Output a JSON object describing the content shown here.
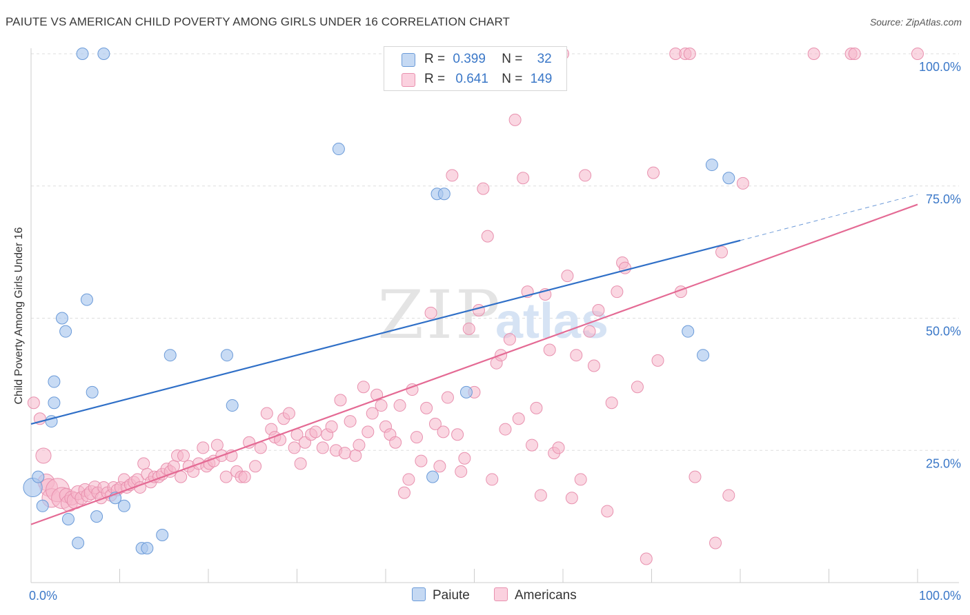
{
  "title": "PAIUTE VS AMERICAN CHILD POVERTY AMONG GIRLS UNDER 16 CORRELATION CHART",
  "source": "Source: ZipAtlas.com",
  "watermark": {
    "zip": "ZIP",
    "atlas": "atlas"
  },
  "legend": {
    "rows": [
      {
        "r_label": "R =",
        "r_value": "0.399",
        "n_label": "N =",
        "n_value": "32"
      },
      {
        "r_label": "R =",
        "r_value": "0.641",
        "n_label": "N =",
        "n_value": "149"
      }
    ]
  },
  "bottom_legend": {
    "paiute": "Paiute",
    "americans": "Americans"
  },
  "colors": {
    "paiute_fill": "#aac8ee",
    "paiute_stroke": "#6a9ad8",
    "paiute_line": "#2f6fc7",
    "americans_fill": "#f6b6ca",
    "americans_stroke": "#e890ae",
    "americans_line": "#e46a94",
    "tick_text": "#3b78c8",
    "grid": "#dddddd"
  },
  "chart_data": {
    "type": "scatter",
    "title": "PAIUTE VS AMERICAN CHILD POVERTY AMONG GIRLS UNDER 16 CORRELATION CHART",
    "xlabel": "",
    "ylabel": "Child Poverty Among Girls Under 16",
    "xlim": [
      0,
      100
    ],
    "ylim": [
      0,
      100
    ],
    "x_tick_labels": [
      "0.0%",
      "100.0%"
    ],
    "y_tick_labels": [
      "25.0%",
      "50.0%",
      "75.0%",
      "100.0%"
    ],
    "y_ticks": [
      25,
      50,
      75,
      100
    ],
    "grid": true,
    "legend_position": "top-center",
    "series": [
      {
        "name": "Paiute",
        "R": 0.399,
        "N": 32,
        "trend": {
          "x0": 0,
          "y0": 30,
          "x1": 80,
          "y1": 64.7,
          "dashed_to_x": 100,
          "dashed_to_y": 73.4
        },
        "points": [
          [
            0.2,
            18,
            16
          ],
          [
            0.8,
            20,
            10
          ],
          [
            1.3,
            14.5,
            10
          ],
          [
            2.3,
            30.5,
            10
          ],
          [
            2.6,
            34,
            10
          ],
          [
            2.6,
            38,
            10
          ],
          [
            3.5,
            50,
            10
          ],
          [
            3.9,
            47.5,
            10
          ],
          [
            4.2,
            12,
            10
          ],
          [
            5.3,
            7.5,
            10
          ],
          [
            5.8,
            100,
            10
          ],
          [
            6.3,
            53.5,
            10
          ],
          [
            6.9,
            36,
            10
          ],
          [
            7.4,
            12.5,
            10
          ],
          [
            8.2,
            100,
            10
          ],
          [
            9.5,
            16,
            10
          ],
          [
            10.5,
            14.5,
            10
          ],
          [
            12.5,
            6.5,
            10
          ],
          [
            13.1,
            6.5,
            10
          ],
          [
            14.8,
            9,
            10
          ],
          [
            15.7,
            43,
            10
          ],
          [
            22.1,
            43,
            10
          ],
          [
            22.7,
            33.5,
            10
          ],
          [
            34.7,
            82,
            10
          ],
          [
            45.3,
            20,
            10
          ],
          [
            45.8,
            73.5,
            10
          ],
          [
            46.6,
            73.5,
            10
          ],
          [
            49.1,
            36,
            10
          ],
          [
            74.1,
            47.5,
            10
          ],
          [
            75.8,
            43,
            10
          ],
          [
            76.8,
            79,
            10
          ],
          [
            78.7,
            76.5,
            10
          ]
        ]
      },
      {
        "name": "Americans",
        "R": 0.641,
        "N": 149,
        "trend": {
          "x0": 0,
          "y0": 11,
          "x1": 100,
          "y1": 71.5
        },
        "points": [
          [
            0.3,
            34,
            10
          ],
          [
            1.0,
            31,
            10
          ],
          [
            1.4,
            24,
            13
          ],
          [
            1.7,
            19,
            14
          ],
          [
            2.0,
            18,
            15
          ],
          [
            2.3,
            16,
            16
          ],
          [
            3.0,
            17.5,
            20
          ],
          [
            3.5,
            16,
            18
          ],
          [
            4.0,
            16.5,
            12
          ],
          [
            4.3,
            15,
            14
          ],
          [
            4.6,
            16,
            12
          ],
          [
            5.0,
            15.5,
            14
          ],
          [
            5.3,
            17,
            12
          ],
          [
            5.7,
            16,
            11
          ],
          [
            6.1,
            17.5,
            11
          ],
          [
            6.4,
            16.5,
            11
          ],
          [
            6.8,
            17,
            12
          ],
          [
            7.2,
            18,
            11
          ],
          [
            7.5,
            17,
            10
          ],
          [
            7.9,
            16,
            10
          ],
          [
            8.2,
            18,
            10
          ],
          [
            8.6,
            17,
            10
          ],
          [
            9.0,
            16.5,
            10
          ],
          [
            9.3,
            18,
            10
          ],
          [
            9.7,
            17.5,
            10
          ],
          [
            10.1,
            18,
            10
          ],
          [
            10.5,
            19.5,
            10
          ],
          [
            10.8,
            18,
            10
          ],
          [
            11.2,
            18.5,
            10
          ],
          [
            11.6,
            19,
            10
          ],
          [
            12.0,
            19.5,
            10
          ],
          [
            12.3,
            18,
            10
          ],
          [
            12.7,
            22.5,
            10
          ],
          [
            13.1,
            20.5,
            10
          ],
          [
            13.5,
            19,
            10
          ],
          [
            13.9,
            20,
            10
          ],
          [
            14.4,
            20,
            10
          ],
          [
            14.8,
            20.5,
            10
          ],
          [
            15.3,
            21.5,
            10
          ],
          [
            15.7,
            21,
            10
          ],
          [
            16.1,
            22,
            10
          ],
          [
            16.5,
            24,
            10
          ],
          [
            16.9,
            20,
            10
          ],
          [
            17.2,
            24,
            10
          ],
          [
            17.8,
            22,
            10
          ],
          [
            18.3,
            21,
            10
          ],
          [
            18.9,
            22.5,
            10
          ],
          [
            19.4,
            25.5,
            10
          ],
          [
            19.8,
            22,
            10
          ],
          [
            20.1,
            22.5,
            10
          ],
          [
            20.6,
            23,
            10
          ],
          [
            21.0,
            26,
            10
          ],
          [
            21.5,
            24,
            10
          ],
          [
            22.0,
            20,
            10
          ],
          [
            22.6,
            24,
            10
          ],
          [
            23.2,
            21,
            10
          ],
          [
            23.7,
            20,
            10
          ],
          [
            24.1,
            20,
            10
          ],
          [
            24.6,
            26.5,
            10
          ],
          [
            25.3,
            22,
            10
          ],
          [
            25.9,
            25.5,
            10
          ],
          [
            26.6,
            32,
            10
          ],
          [
            27.1,
            29,
            10
          ],
          [
            27.5,
            27.5,
            10
          ],
          [
            28.1,
            27,
            10
          ],
          [
            28.5,
            31,
            10
          ],
          [
            29.1,
            32,
            10
          ],
          [
            29.7,
            25.5,
            10
          ],
          [
            30.0,
            28,
            10
          ],
          [
            30.4,
            22.5,
            10
          ],
          [
            30.9,
            26.5,
            10
          ],
          [
            31.6,
            28,
            10
          ],
          [
            32.1,
            28.5,
            10
          ],
          [
            32.9,
            25.5,
            10
          ],
          [
            33.4,
            28,
            10
          ],
          [
            33.9,
            29.5,
            10
          ],
          [
            34.4,
            25,
            10
          ],
          [
            34.9,
            34.5,
            10
          ],
          [
            35.4,
            24.5,
            10
          ],
          [
            36.0,
            30.5,
            10
          ],
          [
            36.6,
            24,
            10
          ],
          [
            37.0,
            26,
            10
          ],
          [
            37.5,
            37,
            10
          ],
          [
            38.0,
            28.5,
            10
          ],
          [
            38.5,
            32,
            10
          ],
          [
            39.0,
            35.5,
            10
          ],
          [
            39.5,
            33.5,
            10
          ],
          [
            40.0,
            29.5,
            10
          ],
          [
            40.5,
            28,
            10
          ],
          [
            41.1,
            26.5,
            10
          ],
          [
            41.6,
            33.5,
            10
          ],
          [
            42.1,
            17,
            10
          ],
          [
            42.6,
            19.5,
            10
          ],
          [
            43.0,
            36.5,
            10
          ],
          [
            43.5,
            27.5,
            10
          ],
          [
            44.0,
            23,
            10
          ],
          [
            44.6,
            33,
            10
          ],
          [
            45.1,
            51,
            10
          ],
          [
            45.6,
            30,
            10
          ],
          [
            46.1,
            22,
            10
          ],
          [
            46.5,
            28.5,
            10
          ],
          [
            47.0,
            35,
            10
          ],
          [
            47.5,
            77,
            10
          ],
          [
            48.1,
            28,
            10
          ],
          [
            48.5,
            21,
            10
          ],
          [
            48.9,
            23.5,
            10
          ],
          [
            49.4,
            48,
            10
          ],
          [
            50.0,
            36,
            10
          ],
          [
            50.5,
            51.5,
            10
          ],
          [
            51.0,
            74.5,
            10
          ],
          [
            51.5,
            65.5,
            10
          ],
          [
            52.0,
            19.5,
            10
          ],
          [
            52.5,
            41.5,
            10
          ],
          [
            53.0,
            43,
            10
          ],
          [
            53.5,
            29,
            10
          ],
          [
            54.0,
            46,
            10
          ],
          [
            54.6,
            87.5,
            10
          ],
          [
            55.0,
            31,
            10
          ],
          [
            55.5,
            76.5,
            10
          ],
          [
            56.0,
            55,
            10
          ],
          [
            56.5,
            26,
            10
          ],
          [
            57.0,
            33,
            10
          ],
          [
            57.5,
            16.5,
            10
          ],
          [
            58.0,
            54.5,
            10
          ],
          [
            58.5,
            44,
            10
          ],
          [
            59.0,
            24.5,
            10
          ],
          [
            59.5,
            25.5,
            10
          ],
          [
            60.0,
            100,
            10
          ],
          [
            60.5,
            58,
            10
          ],
          [
            61.0,
            16,
            10
          ],
          [
            61.5,
            43,
            10
          ],
          [
            62.0,
            19.5,
            10
          ],
          [
            62.5,
            77,
            10
          ],
          [
            63.0,
            47.5,
            10
          ],
          [
            63.5,
            41,
            10
          ],
          [
            64.0,
            51.5,
            10
          ],
          [
            65.0,
            13.5,
            10
          ],
          [
            65.5,
            34,
            10
          ],
          [
            66.1,
            55,
            10
          ],
          [
            66.7,
            60.5,
            10
          ],
          [
            67.0,
            59.5,
            10
          ],
          [
            68.4,
            37,
            10
          ],
          [
            69.4,
            4.5,
            10
          ],
          [
            70.2,
            77.5,
            10
          ],
          [
            70.7,
            42,
            10
          ],
          [
            72.7,
            100,
            10
          ],
          [
            73.3,
            55,
            10
          ],
          [
            73.8,
            100,
            10
          ],
          [
            74.3,
            100,
            10
          ],
          [
            74.9,
            20,
            10
          ],
          [
            77.2,
            7.5,
            10
          ],
          [
            77.9,
            62.5,
            10
          ],
          [
            78.7,
            16.5,
            10
          ],
          [
            80.3,
            75.5,
            10
          ],
          [
            88.3,
            100,
            10
          ],
          [
            92.5,
            100,
            10
          ],
          [
            92.9,
            100,
            10
          ],
          [
            100.0,
            100,
            10
          ]
        ]
      }
    ]
  }
}
